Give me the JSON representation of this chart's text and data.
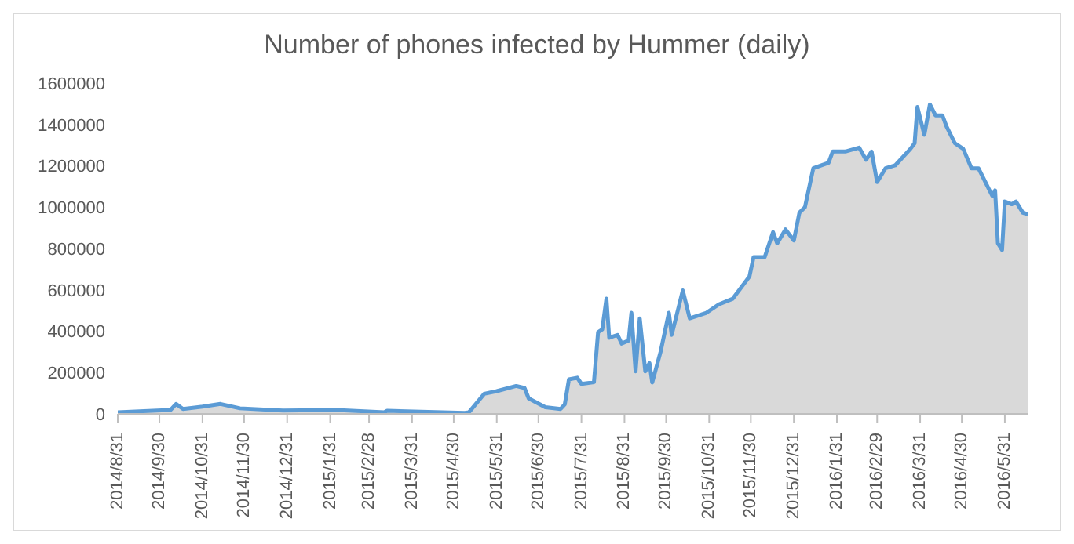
{
  "chart_data": {
    "type": "area",
    "title": "Number of phones infected by Hummer (daily)",
    "x": [
      "2014-08-31",
      "2014-10-08",
      "2014-10-12",
      "2014-10-17",
      "2014-10-31",
      "2014-11-13",
      "2014-11-27",
      "2014-12-28",
      "2015-02-04",
      "2015-03-11",
      "2015-03-13",
      "2015-05-08",
      "2015-05-11",
      "2015-05-22",
      "2015-05-31",
      "2015-06-14",
      "2015-06-20",
      "2015-06-23",
      "2015-07-05",
      "2015-07-16",
      "2015-07-19",
      "2015-07-22",
      "2015-07-28",
      "2015-07-31",
      "2015-08-09",
      "2015-08-12",
      "2015-08-15",
      "2015-08-18",
      "2015-08-20",
      "2015-08-26",
      "2015-08-29",
      "2015-09-03",
      "2015-09-05",
      "2015-09-08",
      "2015-09-11",
      "2015-09-15",
      "2015-09-18",
      "2015-09-20",
      "2015-09-26",
      "2015-10-02",
      "2015-10-04",
      "2015-10-12",
      "2015-10-17",
      "2015-10-29",
      "2015-11-07",
      "2015-11-17",
      "2015-11-29",
      "2015-12-02",
      "2015-12-10",
      "2015-12-16",
      "2015-12-19",
      "2015-12-25",
      "2015-12-31",
      "2016-01-04",
      "2016-01-08",
      "2016-01-14",
      "2016-01-25",
      "2016-01-28",
      "2016-02-06",
      "2016-02-16",
      "2016-02-21",
      "2016-02-25",
      "2016-02-29",
      "2016-03-06",
      "2016-03-13",
      "2016-03-24",
      "2016-03-27",
      "2016-03-29",
      "2016-04-03",
      "2016-04-07",
      "2016-04-11",
      "2016-04-16",
      "2016-04-19",
      "2016-04-25",
      "2016-05-01",
      "2016-05-07",
      "2016-05-12",
      "2016-05-18",
      "2016-05-22",
      "2016-05-24",
      "2016-05-26",
      "2016-05-29",
      "2016-05-31",
      "2016-06-05",
      "2016-06-08",
      "2016-06-13",
      "2016-06-17"
    ],
    "series": [
      {
        "color": "#5b9bd5",
        "values": [
          8000,
          19000,
          48000,
          24000,
          35000,
          48000,
          27000,
          16000,
          19000,
          8000,
          15000,
          5000,
          8000,
          97000,
          110000,
          135000,
          125000,
          75000,
          32000,
          24000,
          46000,
          167000,
          175000,
          145000,
          153000,
          395000,
          409000,
          557000,
          368000,
          382000,
          340000,
          355000,
          489000,
          206000,
          462000,
          206000,
          246000,
          152000,
          300000,
          489000,
          382000,
          597000,
          462000,
          489000,
          530000,
          557000,
          664000,
          758000,
          758000,
          879000,
          825000,
          892000,
          839000,
          973000,
          1000000,
          1188000,
          1215000,
          1269000,
          1269000,
          1288000,
          1229000,
          1269000,
          1121000,
          1188000,
          1202000,
          1282000,
          1309000,
          1484000,
          1350000,
          1497000,
          1444000,
          1444000,
          1390000,
          1309000,
          1282000,
          1188000,
          1188000,
          1108000,
          1054000,
          1081000,
          825000,
          793000,
          1027000,
          1014000,
          1027000,
          973000,
          965000
        ]
      }
    ],
    "xlim": [
      "2014-08-31",
      "2016-06-17"
    ],
    "xticks": [
      {
        "value": "2014-08-31",
        "label": "2014/8/31"
      },
      {
        "value": "2014-09-30",
        "label": "2014/9/30"
      },
      {
        "value": "2014-10-31",
        "label": "2014/10/31"
      },
      {
        "value": "2014-11-30",
        "label": "2014/11/30"
      },
      {
        "value": "2014-12-31",
        "label": "2014/12/31"
      },
      {
        "value": "2015-01-31",
        "label": "2015/1/31"
      },
      {
        "value": "2015-02-28",
        "label": "2015/2/28"
      },
      {
        "value": "2015-03-31",
        "label": "2015/3/31"
      },
      {
        "value": "2015-04-30",
        "label": "2015/4/30"
      },
      {
        "value": "2015-05-31",
        "label": "2015/5/31"
      },
      {
        "value": "2015-06-30",
        "label": "2015/6/30"
      },
      {
        "value": "2015-07-31",
        "label": "2015/7/31"
      },
      {
        "value": "2015-08-31",
        "label": "2015/8/31"
      },
      {
        "value": "2015-09-30",
        "label": "2015/9/30"
      },
      {
        "value": "2015-10-31",
        "label": "2015/10/31"
      },
      {
        "value": "2015-11-30",
        "label": "2015/11/30"
      },
      {
        "value": "2015-12-31",
        "label": "2015/12/31"
      },
      {
        "value": "2016-01-31",
        "label": "2016/1/31"
      },
      {
        "value": "2016-02-29",
        "label": "2016/2/29"
      },
      {
        "value": "2016-03-31",
        "label": "2016/3/31"
      },
      {
        "value": "2016-04-30",
        "label": "2016/4/30"
      },
      {
        "value": "2016-05-31",
        "label": "2016/5/31"
      }
    ],
    "ylim": [
      0,
      1600000
    ],
    "yticks": [
      0,
      200000,
      400000,
      600000,
      800000,
      1000000,
      1200000,
      1400000,
      1600000
    ],
    "grid": false
  }
}
